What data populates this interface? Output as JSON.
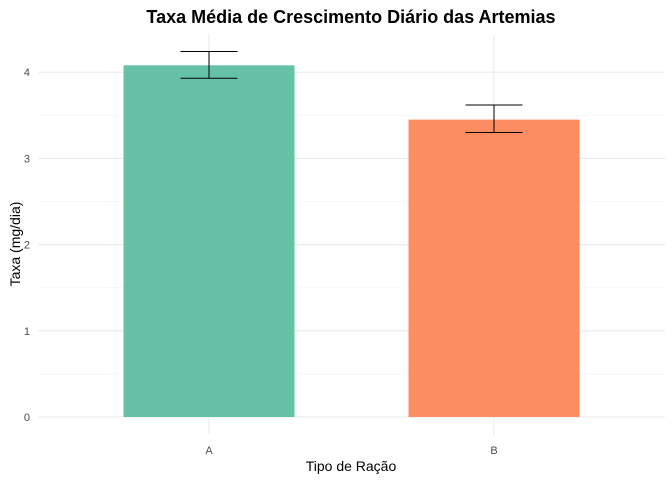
{
  "chart_data": {
    "type": "bar",
    "title": "Taxa Média de Crescimento Diário das Artemias",
    "xlabel": "Tipo de Ração",
    "ylabel": "Taxa (mg/dia)",
    "categories": [
      "A",
      "B"
    ],
    "values": [
      4.08,
      3.45
    ],
    "error_low": [
      3.93,
      3.3
    ],
    "error_high": [
      4.24,
      3.62
    ],
    "colors": [
      "#66c2a5",
      "#fc8d62"
    ],
    "ylim": [
      0,
      4.4
    ],
    "yticks": [
      0,
      1,
      2,
      3,
      4
    ],
    "grid": true,
    "legend": "none"
  }
}
